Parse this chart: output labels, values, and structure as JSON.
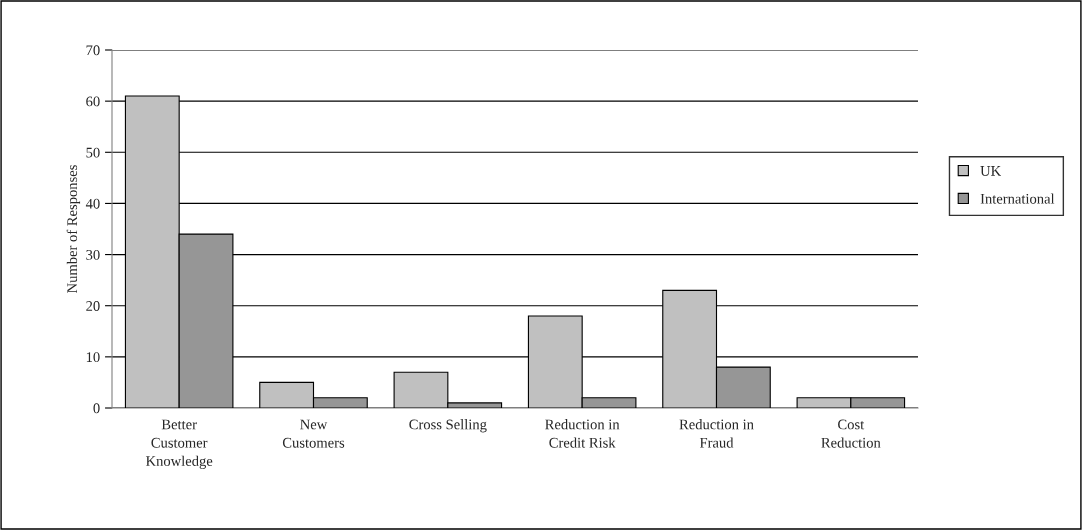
{
  "chart_data": {
    "type": "bar",
    "ylabel": "Number of Responses",
    "categories": [
      "Better Customer Knowledge",
      "New Customers",
      "Cross Selling",
      "Reduction in Credit Risk",
      "Reduction in Fraud",
      "Cost Reduction"
    ],
    "series": [
      {
        "name": "UK",
        "color": "#c0c0c0",
        "values": [
          61,
          5,
          7,
          18,
          23,
          2
        ]
      },
      {
        "name": "International",
        "color": "#969696",
        "values": [
          34,
          2,
          1,
          2,
          8,
          2
        ]
      }
    ],
    "ylim": [
      0,
      70
    ],
    "yticks": [
      0,
      10,
      20,
      30,
      40,
      50,
      60,
      70
    ],
    "grid": "y",
    "legend": "right"
  }
}
